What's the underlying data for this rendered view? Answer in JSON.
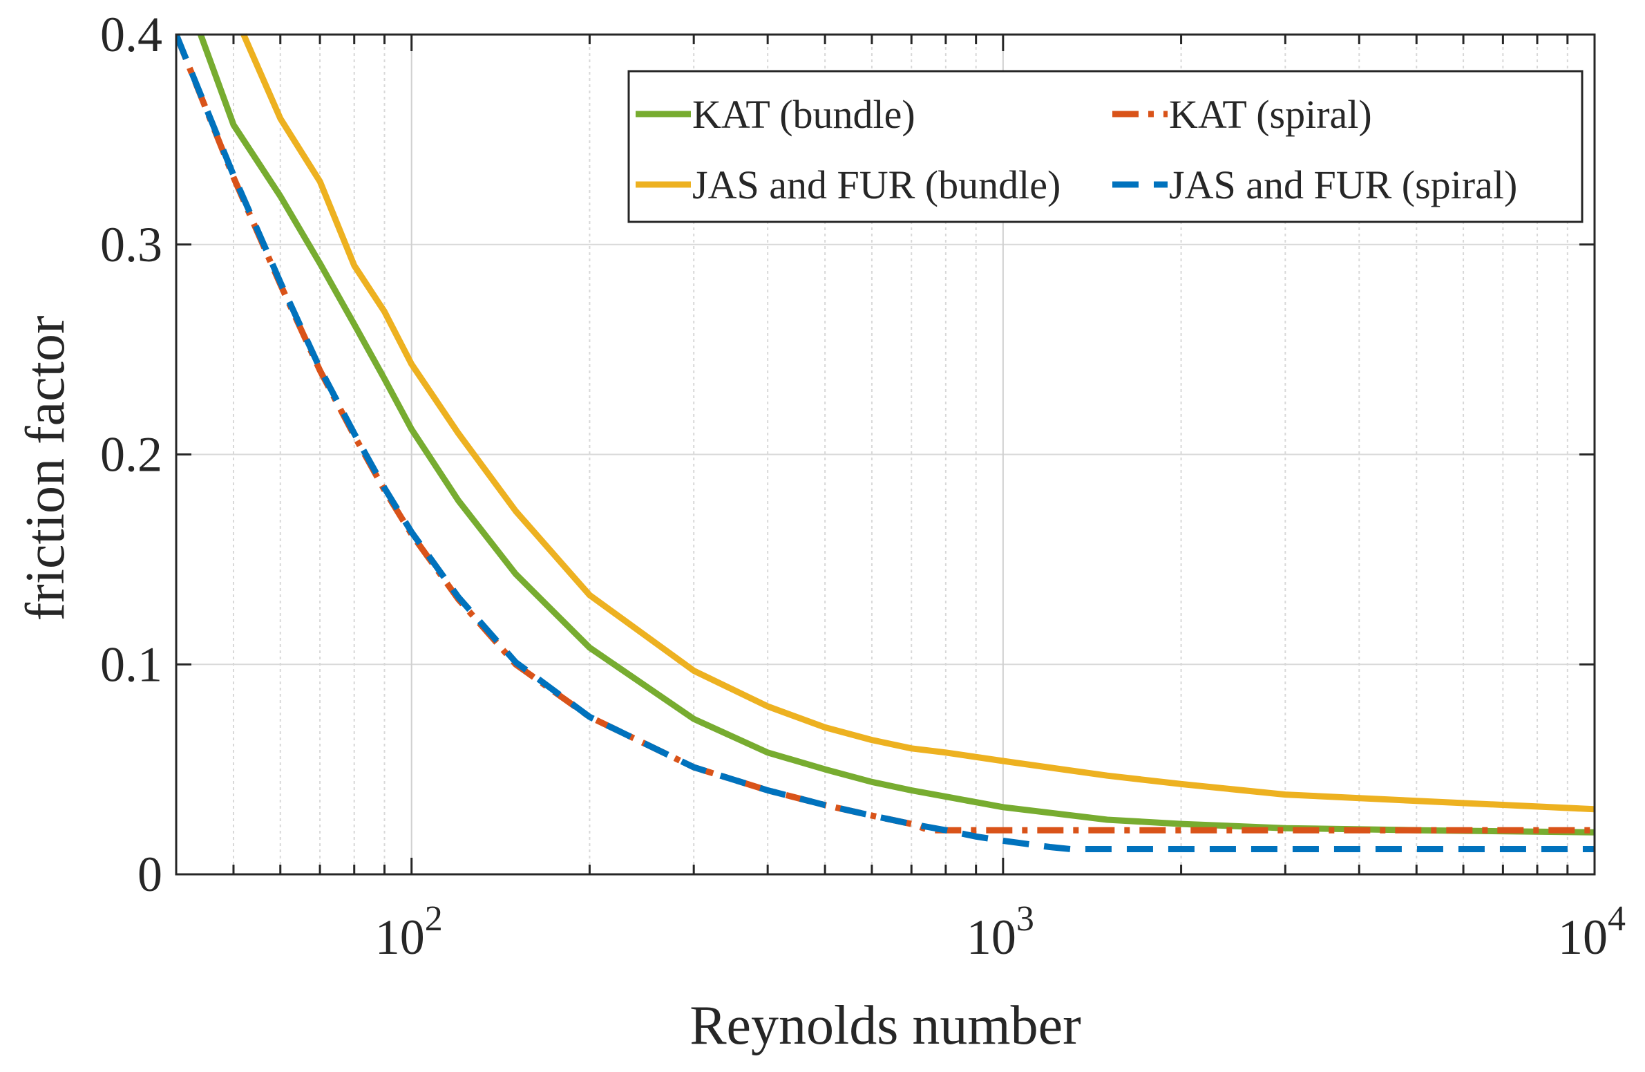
{
  "chart_data": {
    "type": "line",
    "title": "",
    "xlabel": "Reynolds number",
    "ylabel": "friction factor",
    "xscale": "log",
    "xlim": [
      40,
      10000
    ],
    "ylim": [
      0,
      0.4
    ],
    "grid": true,
    "legend_position": "top-right",
    "yticks": [
      {
        "value": 0,
        "label": "0"
      },
      {
        "value": 0.1,
        "label": "0.1"
      },
      {
        "value": 0.2,
        "label": "0.2"
      },
      {
        "value": 0.3,
        "label": "0.3"
      },
      {
        "value": 0.4,
        "label": "0.4"
      }
    ],
    "xticks": [
      {
        "value": 100,
        "base": "10",
        "exp": "2"
      },
      {
        "value": 1000,
        "base": "10",
        "exp": "3"
      },
      {
        "value": 10000,
        "base": "10",
        "exp": "4"
      }
    ],
    "series": [
      {
        "name": "KAT (bundle)",
        "color": "#77AC30",
        "dash": "solid",
        "points": [
          [
            44,
            0.4
          ],
          [
            50,
            0.357
          ],
          [
            60,
            0.323
          ],
          [
            70,
            0.291
          ],
          [
            80,
            0.262
          ],
          [
            90,
            0.236
          ],
          [
            100,
            0.212
          ],
          [
            120,
            0.178
          ],
          [
            150,
            0.143
          ],
          [
            200,
            0.108
          ],
          [
            300,
            0.074
          ],
          [
            400,
            0.058
          ],
          [
            500,
            0.05
          ],
          [
            600,
            0.044
          ],
          [
            700,
            0.04
          ],
          [
            800,
            0.037
          ],
          [
            1000,
            0.032
          ],
          [
            1500,
            0.026
          ],
          [
            2000,
            0.024
          ],
          [
            3000,
            0.022
          ],
          [
            5000,
            0.021
          ],
          [
            10000,
            0.02
          ]
        ]
      },
      {
        "name": "JAS and FUR (bundle)",
        "color": "#EDB120",
        "dash": "solid",
        "points": [
          [
            52,
            0.4
          ],
          [
            60,
            0.36
          ],
          [
            70,
            0.33
          ],
          [
            80,
            0.29
          ],
          [
            90,
            0.268
          ],
          [
            100,
            0.243
          ],
          [
            120,
            0.21
          ],
          [
            150,
            0.173
          ],
          [
            200,
            0.133
          ],
          [
            300,
            0.097
          ],
          [
            400,
            0.08
          ],
          [
            500,
            0.07
          ],
          [
            600,
            0.064
          ],
          [
            700,
            0.06
          ],
          [
            800,
            0.058
          ],
          [
            1000,
            0.054
          ],
          [
            1500,
            0.047
          ],
          [
            2000,
            0.043
          ],
          [
            3000,
            0.038
          ],
          [
            5000,
            0.035
          ],
          [
            10000,
            0.031
          ]
        ]
      },
      {
        "name": "KAT (spiral)",
        "color": "#D95319",
        "dash": "dashdot",
        "points": [
          [
            40,
            0.4
          ],
          [
            50,
            0.332
          ],
          [
            60,
            0.281
          ],
          [
            70,
            0.24
          ],
          [
            80,
            0.209
          ],
          [
            90,
            0.183
          ],
          [
            100,
            0.162
          ],
          [
            120,
            0.131
          ],
          [
            150,
            0.1
          ],
          [
            200,
            0.075
          ],
          [
            300,
            0.051
          ],
          [
            400,
            0.04
          ],
          [
            500,
            0.033
          ],
          [
            600,
            0.028
          ],
          [
            700,
            0.024
          ],
          [
            750,
            0.021
          ],
          [
            800,
            0.021
          ],
          [
            1000,
            0.021
          ],
          [
            2000,
            0.021
          ],
          [
            5000,
            0.021
          ],
          [
            10000,
            0.021
          ]
        ]
      },
      {
        "name": "JAS and FUR (spiral)",
        "color": "#0072BD",
        "dash": "dashed",
        "points": [
          [
            40,
            0.4
          ],
          [
            50,
            0.333
          ],
          [
            60,
            0.282
          ],
          [
            70,
            0.241
          ],
          [
            80,
            0.21
          ],
          [
            90,
            0.184
          ],
          [
            100,
            0.163
          ],
          [
            120,
            0.132
          ],
          [
            150,
            0.101
          ],
          [
            200,
            0.075
          ],
          [
            300,
            0.051
          ],
          [
            400,
            0.04
          ],
          [
            500,
            0.033
          ],
          [
            600,
            0.028
          ],
          [
            700,
            0.024
          ],
          [
            800,
            0.021
          ],
          [
            900,
            0.018
          ],
          [
            1000,
            0.016
          ],
          [
            1200,
            0.013
          ],
          [
            1300,
            0.012
          ],
          [
            2000,
            0.012
          ],
          [
            5000,
            0.012
          ],
          [
            10000,
            0.012
          ]
        ]
      }
    ]
  }
}
